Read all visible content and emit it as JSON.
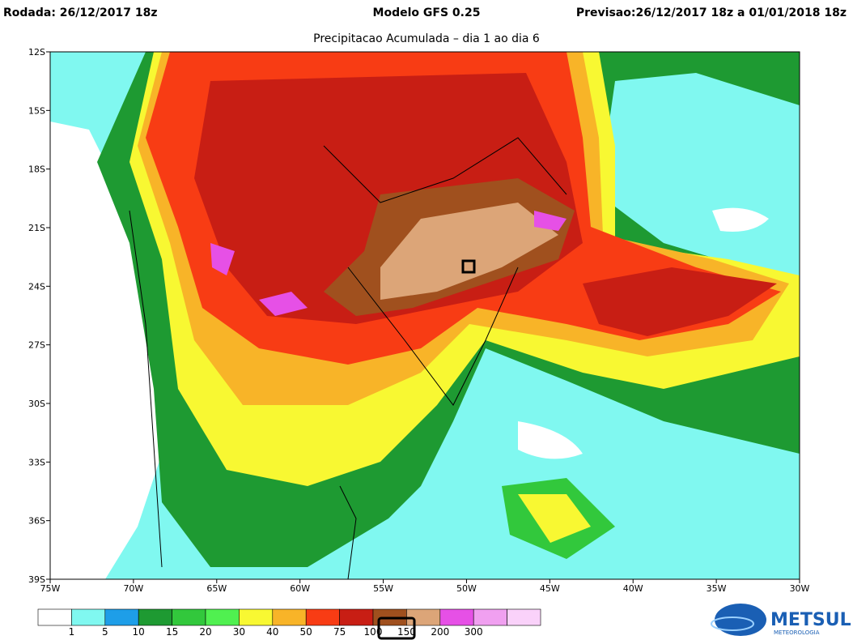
{
  "header": {
    "run": "Rodada: 26/12/2017 18z",
    "model": "Modelo GFS 0.25",
    "forecast": "Previsao:26/12/2017 18z a 01/01/2018 18z",
    "title": "Precipitacao Acumulada – dia 1 ao dia 6"
  },
  "map": {
    "lat_labels": [
      "12S",
      "15S",
      "18S",
      "21S",
      "24S",
      "27S",
      "30S",
      "33S",
      "36S",
      "39S"
    ],
    "lon_labels": [
      "75W",
      "70W",
      "65W",
      "60W",
      "55W",
      "50W",
      "45W",
      "40W",
      "35W",
      "30W"
    ]
  },
  "legend": {
    "colors": [
      "#ffffff",
      "#80f8f0",
      "#1e9ee8",
      "#1e9a32",
      "#32c83c",
      "#50f050",
      "#f8f832",
      "#f8b428",
      "#f83c14",
      "#c81e14",
      "#a0501e",
      "#dca578",
      "#e650e6",
      "#f0a0f0",
      "#fad2fa"
    ],
    "labels": [
      1,
      5,
      10,
      15,
      20,
      30,
      40,
      50,
      75,
      100,
      150,
      200,
      300
    ]
  },
  "logo": {
    "name": "METSUL",
    "tagline": "METEOROLOGIA"
  }
}
